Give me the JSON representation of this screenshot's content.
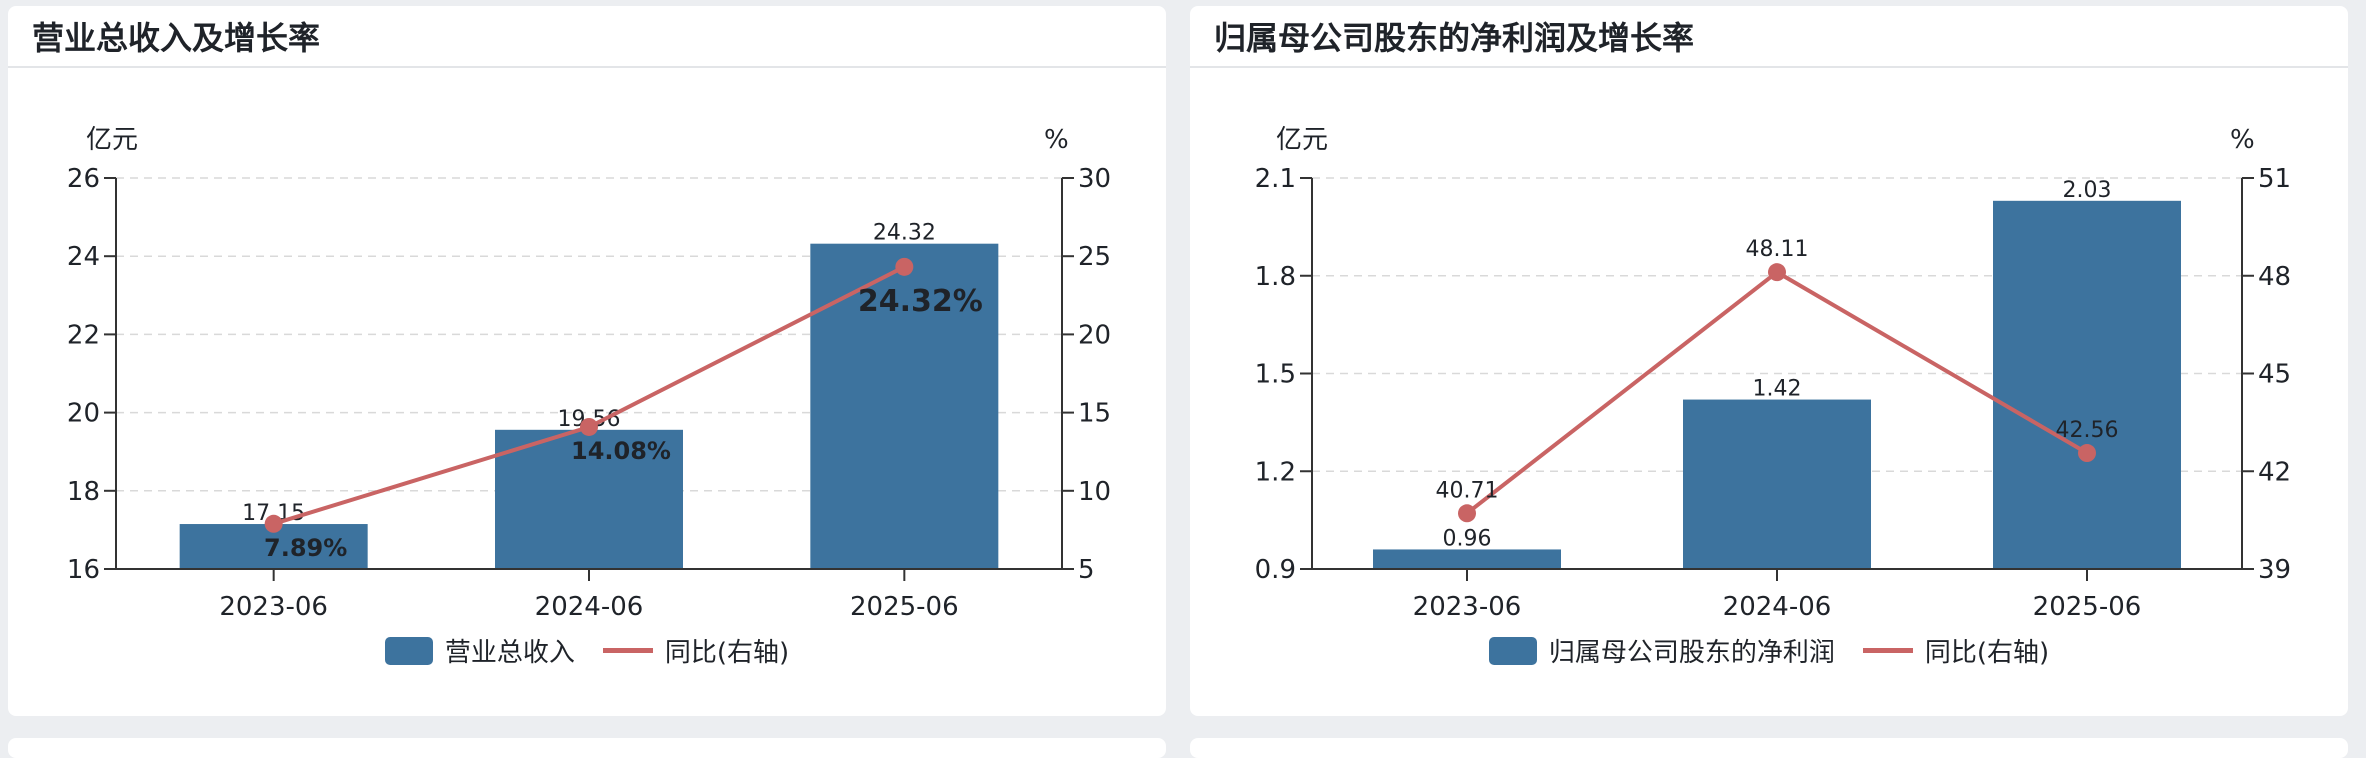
{
  "colors": {
    "bar": "#3d739e",
    "line": "#c96464",
    "grid": "#d9d9d9"
  },
  "charts": [
    {
      "title": "营业总收入及增长率",
      "left_unit": "亿元",
      "right_unit": "%",
      "legend_bar": "营业总收入",
      "legend_line": "同比(右轴)"
    },
    {
      "title": "归属母公司股东的净利润及增长率",
      "left_unit": "亿元",
      "right_unit": "%",
      "legend_bar": "归属母公司股东的净利润",
      "legend_line": "同比(右轴)"
    }
  ],
  "chart_data": [
    {
      "type": "bar",
      "title": "营业总收入及增长率",
      "categories": [
        "2023-06",
        "2024-06",
        "2025-06"
      ],
      "series": [
        {
          "name": "营业总收入",
          "type": "bar",
          "axis": "left",
          "values": [
            17.15,
            19.56,
            24.32
          ],
          "labels": [
            "17.15",
            "19.56",
            "24.32"
          ]
        },
        {
          "name": "同比(右轴)",
          "type": "line",
          "axis": "right",
          "values": [
            7.89,
            14.08,
            24.32
          ],
          "labels": [
            "7.89%",
            "14.08%",
            "24.32%"
          ]
        }
      ],
      "ylim_left": [
        16,
        26
      ],
      "yticks_left": [
        "16",
        "18",
        "20",
        "22",
        "24",
        "26"
      ],
      "ylim_right": [
        5,
        30
      ],
      "yticks_right": [
        "5",
        "10",
        "15",
        "20",
        "25",
        "30"
      ],
      "grid": true,
      "legend_position": "bottom"
    },
    {
      "type": "bar",
      "title": "归属母公司股东的净利润及增长率",
      "categories": [
        "2023-06",
        "2024-06",
        "2025-06"
      ],
      "series": [
        {
          "name": "归属母公司股东的净利润",
          "type": "bar",
          "axis": "left",
          "values": [
            0.96,
            1.42,
            2.03
          ],
          "labels": [
            "0.96",
            "1.42",
            "2.03"
          ]
        },
        {
          "name": "同比(右轴)",
          "type": "line",
          "axis": "right",
          "values": [
            40.71,
            48.11,
            42.56
          ],
          "labels": [
            "40.71",
            "48.11",
            "42.56"
          ]
        }
      ],
      "ylim_left": [
        0.9,
        2.1
      ],
      "yticks_left": [
        "0.9",
        "1.2",
        "1.5",
        "1.8",
        "2.1"
      ],
      "ylim_right": [
        39,
        51
      ],
      "yticks_right": [
        "39",
        "42",
        "45",
        "48",
        "51"
      ],
      "grid": true,
      "legend_position": "bottom"
    }
  ]
}
